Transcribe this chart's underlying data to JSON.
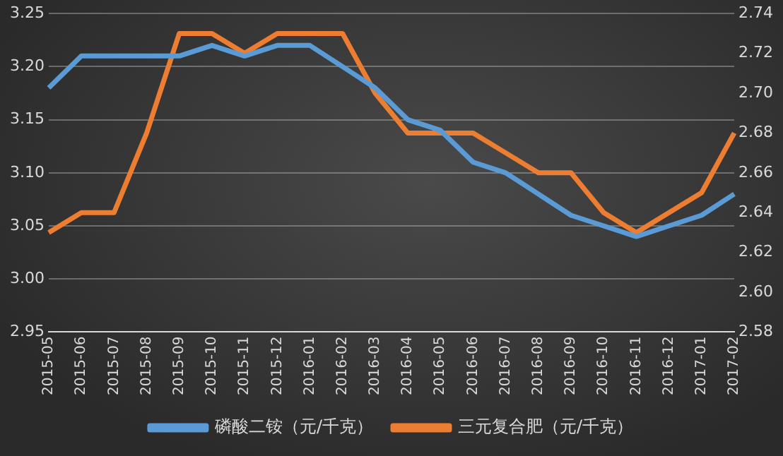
{
  "chart_data": {
    "type": "line",
    "categories": [
      "2015-05",
      "2015-06",
      "2015-07",
      "2015-08",
      "2015-09",
      "2015-10",
      "2015-11",
      "2015-12",
      "2016-01",
      "2016-02",
      "2016-03",
      "2016-04",
      "2016-05",
      "2016-06",
      "2016-07",
      "2016-08",
      "2016-09",
      "2016-10",
      "2016-11",
      "2016-12",
      "2017-01",
      "2017-02"
    ],
    "series": [
      {
        "name": "磷酸二铵（元/千克）",
        "color": "#5b9bd5",
        "values": [
          3.18,
          3.21,
          3.21,
          3.21,
          3.21,
          3.22,
          3.21,
          3.22,
          3.22,
          3.2,
          3.18,
          3.15,
          3.14,
          3.11,
          3.1,
          3.08,
          3.06,
          3.05,
          3.04,
          3.05,
          3.06,
          3.08
        ]
      },
      {
        "name": "三元复合肥（元/千克）",
        "color": "#ed7d31",
        "axis": "y2",
        "values": [
          2.63,
          2.64,
          2.64,
          2.68,
          2.73,
          2.73,
          2.72,
          2.73,
          2.73,
          2.73,
          2.7,
          2.68,
          2.68,
          2.68,
          2.67,
          2.66,
          2.66,
          2.64,
          2.63,
          2.64,
          2.65,
          2.68
        ]
      }
    ],
    "ylim": [
      2.95,
      3.25
    ],
    "yticks": [
      {
        "value": 2.95,
        "label": "2.95"
      },
      {
        "value": 3,
        "label": "3.00"
      },
      {
        "value": 3.05,
        "label": "3.05"
      },
      {
        "value": 3.1,
        "label": "3.10"
      },
      {
        "value": 3.15,
        "label": "3.15"
      },
      {
        "value": 3.2,
        "label": "3.20"
      },
      {
        "value": 3.25,
        "label": "3.25"
      }
    ],
    "y2lim": [
      2.58,
      2.74
    ],
    "y2ticks": [
      {
        "value": 2.58,
        "label": "2.58"
      },
      {
        "value": 2.6,
        "label": "2.60"
      },
      {
        "value": 2.62,
        "label": "2.62"
      },
      {
        "value": 2.64,
        "label": "2.64"
      },
      {
        "value": 2.66,
        "label": "2.66"
      },
      {
        "value": 2.68,
        "label": "2.68"
      },
      {
        "value": 2.7,
        "label": "2.70"
      },
      {
        "value": 2.72,
        "label": "2.72"
      },
      {
        "value": 2.74,
        "label": "2.74"
      }
    ],
    "grid": "y",
    "legend": "bottom",
    "marker": "none",
    "line_style": "solid"
  }
}
